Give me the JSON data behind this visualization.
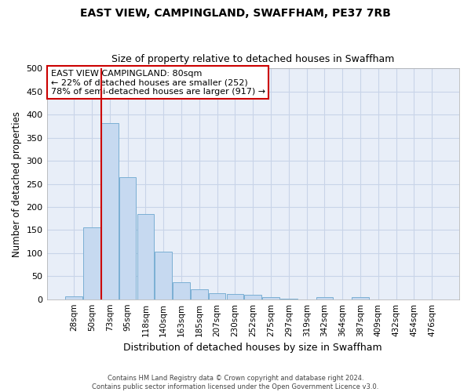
{
  "title": "EAST VIEW, CAMPINGLAND, SWAFFHAM, PE37 7RB",
  "subtitle": "Size of property relative to detached houses in Swaffham",
  "xlabel": "Distribution of detached houses by size in Swaffham",
  "ylabel": "Number of detached properties",
  "bar_color": "#c6d9f0",
  "bar_edge_color": "#7bafd4",
  "grid_color": "#c8d4e8",
  "background_color": "#e8eef8",
  "annotation_box_color": "#cc0000",
  "vline_color": "#cc0000",
  "categories": [
    "28sqm",
    "50sqm",
    "73sqm",
    "95sqm",
    "118sqm",
    "140sqm",
    "163sqm",
    "185sqm",
    "207sqm",
    "230sqm",
    "252sqm",
    "275sqm",
    "297sqm",
    "319sqm",
    "342sqm",
    "364sqm",
    "387sqm",
    "409sqm",
    "432sqm",
    "454sqm",
    "476sqm"
  ],
  "bar_heights": [
    7,
    155,
    381,
    265,
    185,
    103,
    37,
    22,
    13,
    11,
    9,
    4,
    1,
    0,
    5,
    0,
    4,
    0,
    0,
    0,
    0
  ],
  "ylim": [
    0,
    500
  ],
  "yticks": [
    0,
    50,
    100,
    150,
    200,
    250,
    300,
    350,
    400,
    450,
    500
  ],
  "vline_position": 2.5,
  "annotation_title": "EAST VIEW CAMPINGLAND: 80sqm",
  "annotation_line1": "← 22% of detached houses are smaller (252)",
  "annotation_line2": "78% of semi-detached houses are larger (917) →",
  "footnote1": "Contains HM Land Registry data © Crown copyright and database right 2024.",
  "footnote2": "Contains public sector information licensed under the Open Government Licence v3.0."
}
